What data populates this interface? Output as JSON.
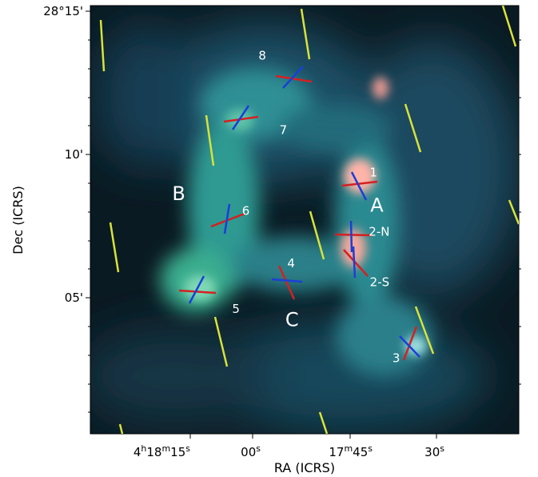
{
  "chart_data": {
    "type": "scatter",
    "title": "",
    "xlabel": "RA (ICRS)",
    "ylabel": "Dec (ICRS)",
    "x_ticks": [
      {
        "value": "4h18m15s",
        "main": "4",
        "h": "h",
        "mid": "18",
        "m": "m",
        "sec": "15",
        "s": "s"
      },
      {
        "value": "4h18m00s",
        "main": "",
        "h": "",
        "mid": "",
        "m": "",
        "sec": "00",
        "s": "s"
      },
      {
        "value": "4h17m45s",
        "main": "17",
        "h": "m",
        "mid": "45",
        "m": "s",
        "sec": "",
        "s": ""
      },
      {
        "value": "4h17m30s",
        "main": "",
        "h": "",
        "mid": "",
        "m": "",
        "sec": "30",
        "s": "s"
      }
    ],
    "y_ticks": [
      "28°15'",
      "10'",
      "05'"
    ],
    "regions": [
      {
        "label": "A",
        "ra_s": 40.9,
        "dec_arcmin": 8.2
      },
      {
        "label": "B",
        "ra_s": 17.1,
        "dec_arcmin": 8.6
      },
      {
        "label": "C",
        "ra_s": 56.4,
        "dec_arcmin": 4.2
      }
    ],
    "sources": [
      {
        "label": "1",
        "ra_s": 45.6,
        "dec_arcmin": 8.8
      },
      {
        "label": "2-N",
        "ra_s": 46.3,
        "dec_arcmin": 7.1
      },
      {
        "label": "2-S",
        "ra_s": 45.8,
        "dec_arcmin": 6.0
      },
      {
        "label": "3",
        "ra_s": 34.3,
        "dec_arcmin": 3.1
      },
      {
        "label": "4",
        "ra_s": 53.5,
        "dec_arcmin": 5.6
      },
      {
        "label": "5",
        "ra_s": 10.9,
        "dec_arcmin": 5.1
      },
      {
        "label": "6",
        "ra_s": 4.7,
        "dec_arcmin": 7.6
      },
      {
        "label": "7",
        "ra_s": 1.5,
        "dec_arcmin": 11.2
      },
      {
        "label": "8",
        "ra_s": 57.3,
        "dec_arcmin": 12.8
      }
    ],
    "legend": "none",
    "grid": false
  }
}
